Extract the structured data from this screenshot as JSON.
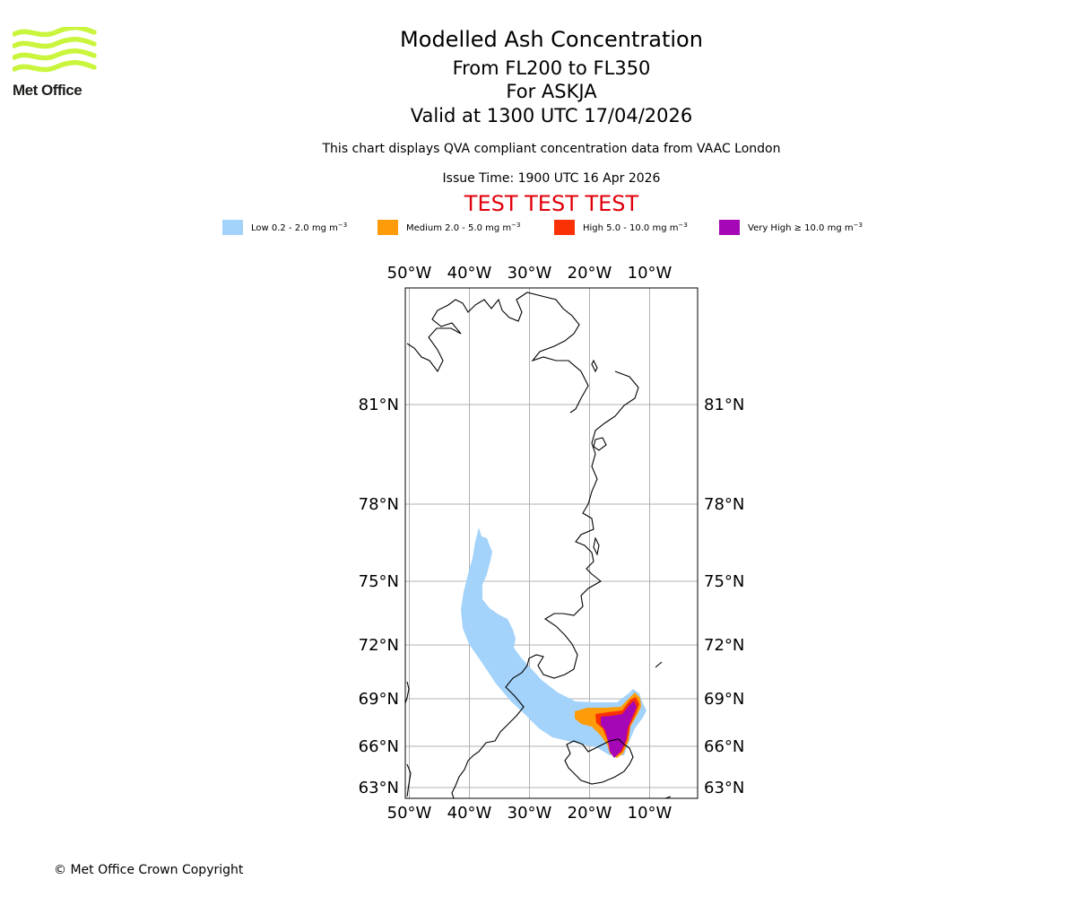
{
  "header": {
    "logo_text": "Met Office",
    "title": "Modelled Ash Concentration",
    "flight_levels": "From FL200 to FL350",
    "volcano": "For ASKJA",
    "valid_time": "Valid at 1300 UTC 17/04/2026",
    "compliance_note": "This chart displays QVA compliant concentration data from VAAC London",
    "issue_time": "Issue Time: 1900 UTC 16 Apr 2026",
    "test_banner": "TEST TEST TEST"
  },
  "legend": [
    {
      "label": "Low 0.2 - 2.0 mg m",
      "sup": "−3",
      "color": "#a3d3fa"
    },
    {
      "label": "Medium 2.0 - 5.0 mg m",
      "sup": "−3",
      "color": "#fd9c08"
    },
    {
      "label": "High 5.0 - 10.0 mg m",
      "sup": "−3",
      "color": "#fb3106"
    },
    {
      "label": "Very High  ≥  10.0 mg m",
      "sup": "−3",
      "color": "#a506b6"
    }
  ],
  "chart_data": {
    "type": "map",
    "title": "Modelled Ash Concentration",
    "projection": "polar map, Greenland – Iceland region",
    "lon_ticks": [
      {
        "value": -50,
        "label": "50°W"
      },
      {
        "value": -40,
        "label": "40°W"
      },
      {
        "value": -30,
        "label": "30°W"
      },
      {
        "value": -20,
        "label": "20°W"
      },
      {
        "value": -10,
        "label": "10°W"
      }
    ],
    "lat_ticks": [
      {
        "value": 81,
        "label": "81°N"
      },
      {
        "value": 78,
        "label": "78°N"
      },
      {
        "value": 75,
        "label": "75°N"
      },
      {
        "value": 72,
        "label": "72°N"
      },
      {
        "value": 69,
        "label": "69°N"
      },
      {
        "value": 66,
        "label": "66°N"
      },
      {
        "value": 63,
        "label": "63°N"
      }
    ],
    "volcano": "ASKJA",
    "ash_levels": [
      "Low",
      "Medium",
      "High",
      "Very High"
    ]
  },
  "footer": {
    "copyright": "© Met Office Crown Copyright"
  }
}
